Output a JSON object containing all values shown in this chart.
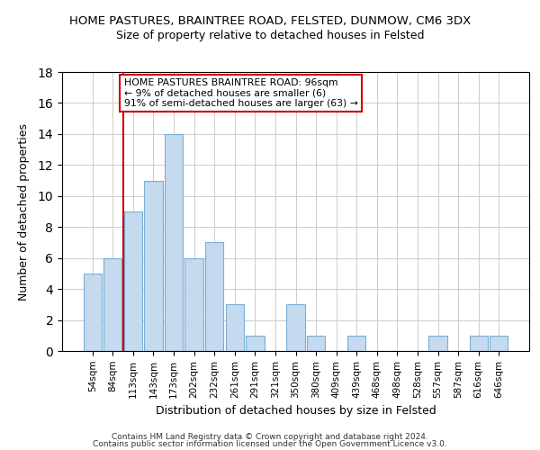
{
  "title": "HOME PASTURES, BRAINTREE ROAD, FELSTED, DUNMOW, CM6 3DX",
  "subtitle": "Size of property relative to detached houses in Felsted",
  "xlabel": "Distribution of detached houses by size in Felsted",
  "ylabel": "Number of detached properties",
  "bar_color": "#c5d9ef",
  "bar_edge_color": "#7bafd4",
  "categories": [
    "54sqm",
    "84sqm",
    "113sqm",
    "143sqm",
    "173sqm",
    "202sqm",
    "232sqm",
    "261sqm",
    "291sqm",
    "321sqm",
    "350sqm",
    "380sqm",
    "409sqm",
    "439sqm",
    "468sqm",
    "498sqm",
    "528sqm",
    "557sqm",
    "587sqm",
    "616sqm",
    "646sqm"
  ],
  "values": [
    5,
    6,
    9,
    11,
    14,
    6,
    7,
    3,
    1,
    0,
    3,
    1,
    0,
    1,
    0,
    0,
    0,
    1,
    0,
    1,
    1
  ],
  "ylim": [
    0,
    18
  ],
  "yticks": [
    0,
    2,
    4,
    6,
    8,
    10,
    12,
    14,
    16,
    18
  ],
  "property_line_x": 1.5,
  "annotation_text": "HOME PASTURES BRAINTREE ROAD: 96sqm\n← 9% of detached houses are smaller (6)\n91% of semi-detached houses are larger (63) →",
  "annotation_box_color": "#ffffff",
  "annotation_box_edge_color": "#cc0000",
  "property_line_color": "#cc0000",
  "footer_line1": "Contains HM Land Registry data © Crown copyright and database right 2024.",
  "footer_line2": "Contains public sector information licensed under the Open Government Licence v3.0."
}
